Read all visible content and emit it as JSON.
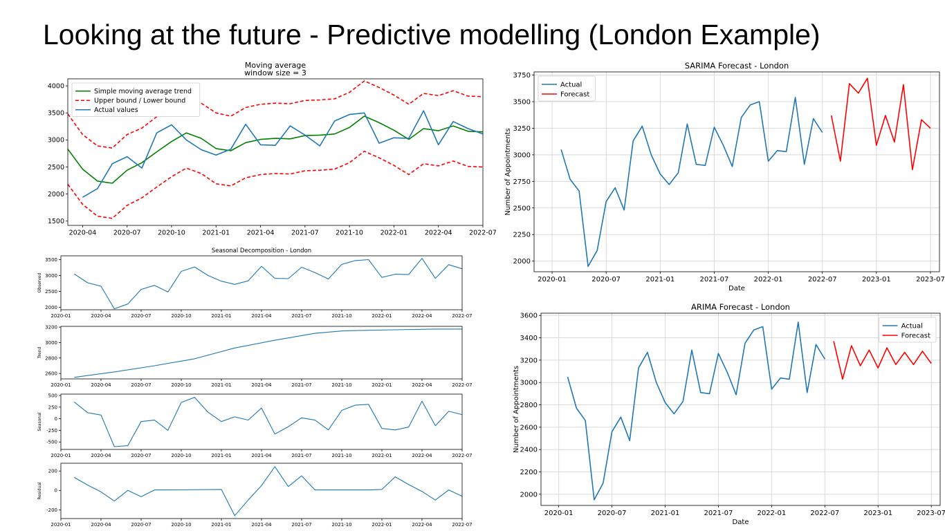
{
  "slide": {
    "title": "Looking at the future - Predictive modelling (London Example)"
  },
  "colors": {
    "actual": "#1f77b4",
    "forecast": "#ff0000",
    "trend": "#008000",
    "bounds": "#ff0000"
  },
  "chart_data": [
    {
      "id": "moving-average",
      "type": "line",
      "title": "Moving average",
      "subtitle": "window size = 3",
      "xlabel": "",
      "ylabel": "",
      "x_tick_labels": [
        "2020-04",
        "2020-07",
        "2020-10",
        "2021-01",
        "2021-04",
        "2021-07",
        "2021-10",
        "2022-01",
        "2022-04",
        "2022-07"
      ],
      "y_ticks": [
        1500,
        2000,
        2500,
        3000,
        3500,
        4000
      ],
      "xlim": [
        "2020-03",
        "2022-07"
      ],
      "ylim": [
        1420,
        4130
      ],
      "grid": false,
      "legend": "top-left",
      "series": [
        {
          "name": "Simple moving average trend",
          "style": "solid",
          "color": "#008000",
          "x": [
            "2020-03",
            "2020-04",
            "2020-05",
            "2020-06",
            "2020-07",
            "2020-08",
            "2020-09",
            "2020-10",
            "2020-11",
            "2020-12",
            "2021-01",
            "2021-02",
            "2021-03",
            "2021-04",
            "2021-05",
            "2021-06",
            "2021-07",
            "2021-08",
            "2021-09",
            "2021-10",
            "2021-11",
            "2021-12",
            "2022-01",
            "2022-02",
            "2022-03",
            "2022-04",
            "2022-05",
            "2022-06",
            "2022-07"
          ],
          "values": [
            2830,
            2460,
            2240,
            2200,
            2440,
            2580,
            2780,
            2970,
            3130,
            3030,
            2840,
            2800,
            2950,
            3010,
            3030,
            3020,
            3080,
            3090,
            3110,
            3230,
            3440,
            3320,
            3180,
            3010,
            3210,
            3170,
            3260,
            3160,
            3150
          ]
        },
        {
          "name": "Upper bound / Lower bound",
          "style": "dashed",
          "color": "#ff0000",
          "x": [
            "2020-03",
            "2020-04",
            "2020-05",
            "2020-06",
            "2020-07",
            "2020-08",
            "2020-09",
            "2020-10",
            "2020-11",
            "2020-12",
            "2021-01",
            "2021-02",
            "2021-03",
            "2021-04",
            "2021-05",
            "2021-06",
            "2021-07",
            "2021-08",
            "2021-09",
            "2021-10",
            "2021-11",
            "2021-12",
            "2022-01",
            "2022-02",
            "2022-03",
            "2022-04",
            "2022-05",
            "2022-06",
            "2022-07"
          ],
          "values": [
            3480,
            3100,
            2890,
            2850,
            3100,
            3220,
            3430,
            3620,
            3800,
            3680,
            3500,
            3440,
            3600,
            3660,
            3680,
            3670,
            3730,
            3740,
            3760,
            3880,
            4090,
            3970,
            3830,
            3660,
            3860,
            3820,
            3910,
            3810,
            3800
          ]
        },
        {
          "name": "",
          "style": "dashed",
          "color": "#ff0000",
          "x": [
            "2020-03",
            "2020-04",
            "2020-05",
            "2020-06",
            "2020-07",
            "2020-08",
            "2020-09",
            "2020-10",
            "2020-11",
            "2020-12",
            "2021-01",
            "2021-02",
            "2021-03",
            "2021-04",
            "2021-05",
            "2021-06",
            "2021-07",
            "2021-08",
            "2021-09",
            "2021-10",
            "2021-11",
            "2021-12",
            "2022-01",
            "2022-02",
            "2022-03",
            "2022-04",
            "2022-05",
            "2022-06",
            "2022-07"
          ],
          "values": [
            2180,
            1810,
            1590,
            1550,
            1790,
            1930,
            2130,
            2320,
            2480,
            2380,
            2190,
            2150,
            2300,
            2360,
            2380,
            2370,
            2430,
            2440,
            2460,
            2580,
            2790,
            2670,
            2530,
            2360,
            2560,
            2520,
            2610,
            2510,
            2500
          ]
        },
        {
          "name": "Actual values",
          "style": "solid",
          "color": "#1f77b4",
          "x": [
            "2020-04",
            "2020-05",
            "2020-06",
            "2020-07",
            "2020-08",
            "2020-09",
            "2020-10",
            "2020-11",
            "2020-12",
            "2021-01",
            "2021-02",
            "2021-03",
            "2021-04",
            "2021-05",
            "2021-06",
            "2021-07",
            "2021-08",
            "2021-09",
            "2021-10",
            "2021-11",
            "2021-12",
            "2022-01",
            "2022-02",
            "2022-03",
            "2022-04",
            "2022-05",
            "2022-06",
            "2022-07"
          ],
          "values": [
            1940,
            2100,
            2560,
            2690,
            2480,
            3130,
            3280,
            3000,
            2820,
            2720,
            2830,
            3290,
            2910,
            2900,
            3260,
            3090,
            2890,
            3350,
            3470,
            3500,
            2940,
            3040,
            3030,
            3540,
            2910,
            3340,
            3210,
            3110
          ]
        }
      ]
    },
    {
      "id": "seasonal-observed",
      "type": "line",
      "title": "Seasonal Decomposition - London",
      "ylabel": "Observed",
      "xlabel": "",
      "x_tick_labels": [
        "2020-01",
        "2020-04",
        "2020-07",
        "2020-10",
        "2021-01",
        "2021-04",
        "2021-07",
        "2021-10",
        "2022-01",
        "2022-04",
        "2022-07"
      ],
      "y_ticks": [
        2000,
        2500,
        3000,
        3500
      ],
      "xlim": [
        "2020-01",
        "2022-07"
      ],
      "ylim": [
        1920,
        3620
      ],
      "series": [
        {
          "name": "",
          "color": "#1f77b4",
          "x": [
            "2020-02",
            "2020-03",
            "2020-04",
            "2020-05",
            "2020-06",
            "2020-07",
            "2020-08",
            "2020-09",
            "2020-10",
            "2020-11",
            "2020-12",
            "2021-01",
            "2021-02",
            "2021-03",
            "2021-04",
            "2021-05",
            "2021-06",
            "2021-07",
            "2021-08",
            "2021-09",
            "2021-10",
            "2021-11",
            "2021-12",
            "2022-01",
            "2022-02",
            "2022-03",
            "2022-04",
            "2022-05",
            "2022-06",
            "2022-07"
          ],
          "values": [
            3050,
            2770,
            2660,
            1950,
            2100,
            2560,
            2690,
            2480,
            3130,
            3270,
            3000,
            2820,
            2720,
            2830,
            3290,
            2910,
            2900,
            3260,
            3090,
            2890,
            3350,
            3470,
            3500,
            2940,
            3040,
            3030,
            3540,
            2910,
            3340,
            3210
          ]
        }
      ]
    },
    {
      "id": "seasonal-trend",
      "type": "line",
      "ylabel": "Trend",
      "xlabel": "",
      "x_tick_labels": [
        "2020-01",
        "2020-04",
        "2020-07",
        "2020-10",
        "2021-01",
        "2021-04",
        "2021-07",
        "2021-10",
        "2022-01",
        "2022-04",
        "2022-07"
      ],
      "y_ticks": [
        2600,
        2800,
        3000,
        3200
      ],
      "xlim": [
        "2020-01",
        "2022-07"
      ],
      "ylim": [
        2530,
        3210
      ],
      "series": [
        {
          "name": "",
          "color": "#1f77b4",
          "x": [
            "2020-02",
            "2020-05",
            "2020-08",
            "2020-11",
            "2021-02",
            "2021-05",
            "2021-08",
            "2021-10",
            "2021-11",
            "2022-02",
            "2022-05",
            "2022-07"
          ],
          "values": [
            2550,
            2620,
            2700,
            2790,
            2930,
            3030,
            3120,
            3150,
            3155,
            3165,
            3175,
            3175
          ]
        }
      ]
    },
    {
      "id": "seasonal-seasonal",
      "type": "line",
      "ylabel": "Seasonal",
      "xlabel": "",
      "x_tick_labels": [
        "2020-01",
        "2020-04",
        "2020-07",
        "2020-10",
        "2021-01",
        "2021-04",
        "2021-07",
        "2021-10",
        "2022-01",
        "2022-04",
        "2022-07"
      ],
      "y_ticks": [
        -500,
        -250,
        0,
        250,
        500
      ],
      "xlim": [
        "2020-01",
        "2022-07"
      ],
      "ylim": [
        -660,
        530
      ],
      "series": [
        {
          "name": "",
          "color": "#1f77b4",
          "x": [
            "2020-02",
            "2020-03",
            "2020-04",
            "2020-05",
            "2020-06",
            "2020-07",
            "2020-08",
            "2020-09",
            "2020-10",
            "2020-11",
            "2020-12",
            "2021-01",
            "2021-02",
            "2021-03",
            "2021-04",
            "2021-05",
            "2021-06",
            "2021-07",
            "2021-08",
            "2021-09",
            "2021-10",
            "2021-11",
            "2021-12",
            "2022-01",
            "2022-02",
            "2022-03",
            "2022-04",
            "2022-05",
            "2022-06",
            "2022-07"
          ],
          "values": [
            360,
            130,
            80,
            -600,
            -580,
            -60,
            -30,
            -250,
            350,
            460,
            140,
            -60,
            40,
            -30,
            230,
            -330,
            -170,
            20,
            -30,
            -240,
            180,
            290,
            310,
            -210,
            -240,
            -180,
            380,
            -150,
            160,
            90
          ]
        }
      ]
    },
    {
      "id": "seasonal-residual",
      "type": "line",
      "ylabel": "Residual",
      "xlabel": "",
      "x_tick_labels": [
        "2020-01",
        "2020-04",
        "2020-07",
        "2020-10",
        "2021-01",
        "2021-04",
        "2021-07",
        "2021-10",
        "2022-01",
        "2022-04",
        "2022-07"
      ],
      "y_ticks": [
        -200,
        0,
        200
      ],
      "xlim": [
        "2020-01",
        "2022-07"
      ],
      "ylim": [
        -290,
        280
      ],
      "series": [
        {
          "name": "",
          "color": "#1f77b4",
          "x": [
            "2020-02",
            "2020-03",
            "2020-04",
            "2020-05",
            "2020-06",
            "2020-07",
            "2020-08",
            "2020-09",
            "2021-01",
            "2021-02",
            "2021-03",
            "2021-04",
            "2021-05",
            "2021-06",
            "2021-07",
            "2021-08",
            "2021-09",
            "2021-10",
            "2021-11",
            "2021-12",
            "2022-01",
            "2022-02",
            "2022-03",
            "2022-04",
            "2022-05",
            "2022-06",
            "2022-07"
          ],
          "values": [
            135,
            55,
            -15,
            -110,
            0,
            -65,
            5,
            5,
            10,
            -260,
            -100,
            50,
            245,
            40,
            150,
            5,
            5,
            5,
            5,
            5,
            10,
            140,
            60,
            -10,
            -100,
            5,
            -60
          ]
        }
      ]
    },
    {
      "id": "sarima",
      "type": "line",
      "title": "SARIMA Forecast - London",
      "xlabel": "Date",
      "ylabel": "Number of Appointments",
      "x_tick_labels": [
        "2020-01",
        "2020-07",
        "2021-01",
        "2021-07",
        "2022-01",
        "2022-07",
        "2023-01",
        "2023-07"
      ],
      "y_ticks": [
        2000,
        2250,
        2500,
        2750,
        3000,
        3250,
        3500,
        3750
      ],
      "xlim": [
        "2019-11",
        "2023-08"
      ],
      "ylim": [
        1900,
        3780
      ],
      "grid": true,
      "legend": "top-left",
      "series": [
        {
          "name": "Actual",
          "color": "#1f77b4",
          "x": [
            "2020-02",
            "2020-03",
            "2020-04",
            "2020-05",
            "2020-06",
            "2020-07",
            "2020-08",
            "2020-09",
            "2020-10",
            "2020-11",
            "2020-12",
            "2021-01",
            "2021-02",
            "2021-03",
            "2021-04",
            "2021-05",
            "2021-06",
            "2021-07",
            "2021-08",
            "2021-09",
            "2021-10",
            "2021-11",
            "2021-12",
            "2022-01",
            "2022-02",
            "2022-03",
            "2022-04",
            "2022-05",
            "2022-06",
            "2022-07"
          ],
          "values": [
            3050,
            2770,
            2660,
            1950,
            2100,
            2560,
            2690,
            2480,
            3130,
            3270,
            3000,
            2820,
            2720,
            2830,
            3290,
            2910,
            2900,
            3260,
            3090,
            2890,
            3350,
            3470,
            3500,
            2940,
            3040,
            3030,
            3540,
            2910,
            3340,
            3210
          ]
        },
        {
          "name": "Forecast",
          "color": "#ff0000",
          "x": [
            "2022-08",
            "2022-09",
            "2022-10",
            "2022-11",
            "2022-12",
            "2023-01",
            "2023-02",
            "2023-03",
            "2023-04",
            "2023-05",
            "2023-06",
            "2023-07"
          ],
          "values": [
            3370,
            2940,
            3670,
            3580,
            3720,
            3090,
            3370,
            3120,
            3660,
            2860,
            3330,
            3250
          ]
        }
      ]
    },
    {
      "id": "arima",
      "type": "line",
      "title": "ARIMA Forecast - London",
      "xlabel": "Date",
      "ylabel": "Number of Appointments",
      "x_tick_labels": [
        "2020-01",
        "2020-07",
        "2021-01",
        "2021-07",
        "2022-01",
        "2022-07",
        "2023-01",
        "2023-07"
      ],
      "y_ticks": [
        2000,
        2200,
        2400,
        2600,
        2800,
        3000,
        3200,
        3400,
        3600
      ],
      "xlim": [
        "2019-11",
        "2023-08"
      ],
      "ylim": [
        1900,
        3620
      ],
      "grid": true,
      "legend": "top-right",
      "series": [
        {
          "name": "Actual",
          "color": "#1f77b4",
          "x": [
            "2020-02",
            "2020-03",
            "2020-04",
            "2020-05",
            "2020-06",
            "2020-07",
            "2020-08",
            "2020-09",
            "2020-10",
            "2020-11",
            "2020-12",
            "2021-01",
            "2021-02",
            "2021-03",
            "2021-04",
            "2021-05",
            "2021-06",
            "2021-07",
            "2021-08",
            "2021-09",
            "2021-10",
            "2021-11",
            "2021-12",
            "2022-01",
            "2022-02",
            "2022-03",
            "2022-04",
            "2022-05",
            "2022-06",
            "2022-07"
          ],
          "values": [
            3050,
            2770,
            2660,
            1950,
            2100,
            2560,
            2690,
            2480,
            3130,
            3270,
            3000,
            2820,
            2720,
            2830,
            3290,
            2910,
            2900,
            3260,
            3090,
            2890,
            3350,
            3470,
            3500,
            2940,
            3040,
            3030,
            3540,
            2910,
            3340,
            3210
          ]
        },
        {
          "name": "Forecast",
          "color": "#ff0000",
          "x": [
            "2022-08",
            "2022-09",
            "2022-10",
            "2022-11",
            "2022-12",
            "2023-01",
            "2023-02",
            "2023-03",
            "2023-04",
            "2023-05",
            "2023-06",
            "2023-07"
          ],
          "values": [
            3370,
            3030,
            3330,
            3150,
            3290,
            3130,
            3310,
            3160,
            3270,
            3160,
            3280,
            3170
          ]
        }
      ]
    }
  ]
}
